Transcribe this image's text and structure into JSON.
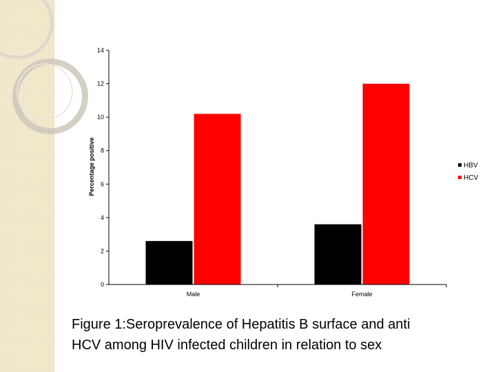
{
  "chart_data": {
    "type": "bar",
    "categories": [
      "Male",
      "Female"
    ],
    "series": [
      {
        "name": "HBV",
        "values": [
          2.6,
          3.6
        ],
        "color": "#000000"
      },
      {
        "name": "HCV",
        "values": [
          10.2,
          12.0
        ],
        "color": "#ff0000"
      }
    ],
    "ylabel": "Percentage positive",
    "xlabel": "",
    "ylim": [
      0,
      14
    ],
    "yticks": [
      0,
      2,
      4,
      6,
      8,
      10,
      12,
      14
    ],
    "legend_position": "right"
  },
  "caption": {
    "line1": "Figure 1:Seroprevalence of Hepatitis B surface and anti",
    "line2": "HCV  among HIV infected children in relation to sex"
  }
}
